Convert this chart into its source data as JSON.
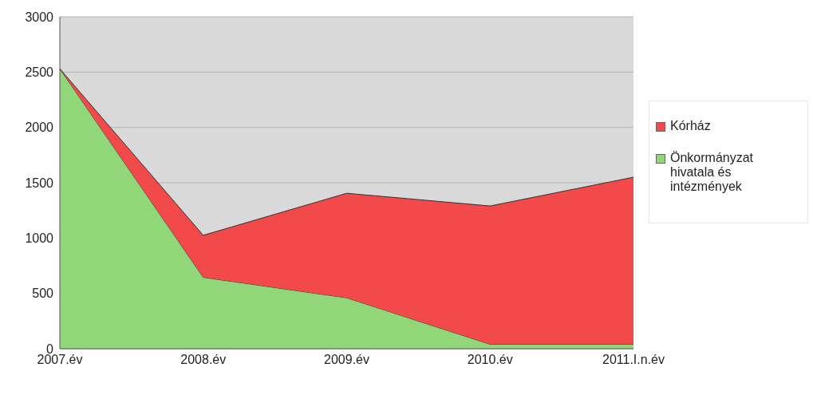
{
  "chart_data": {
    "type": "area",
    "stacked": true,
    "categories": [
      "2007.év",
      "2008.év",
      "2009.év",
      "2010.év",
      "2011.I.n.év"
    ],
    "series": [
      {
        "name": "Önkormányzat hivatala és intézmények",
        "color": "#92d67a",
        "values": [
          2530,
          645,
          460,
          40,
          40
        ]
      },
      {
        "name": "Kórház",
        "color": "#f24a4a",
        "values": [
          0,
          380,
          945,
          1250,
          1510
        ]
      }
    ],
    "ylim": [
      0,
      3000
    ],
    "yticks": [
      0,
      500,
      1000,
      1500,
      2000,
      2500,
      3000
    ],
    "grid": "y",
    "legend": "right"
  }
}
